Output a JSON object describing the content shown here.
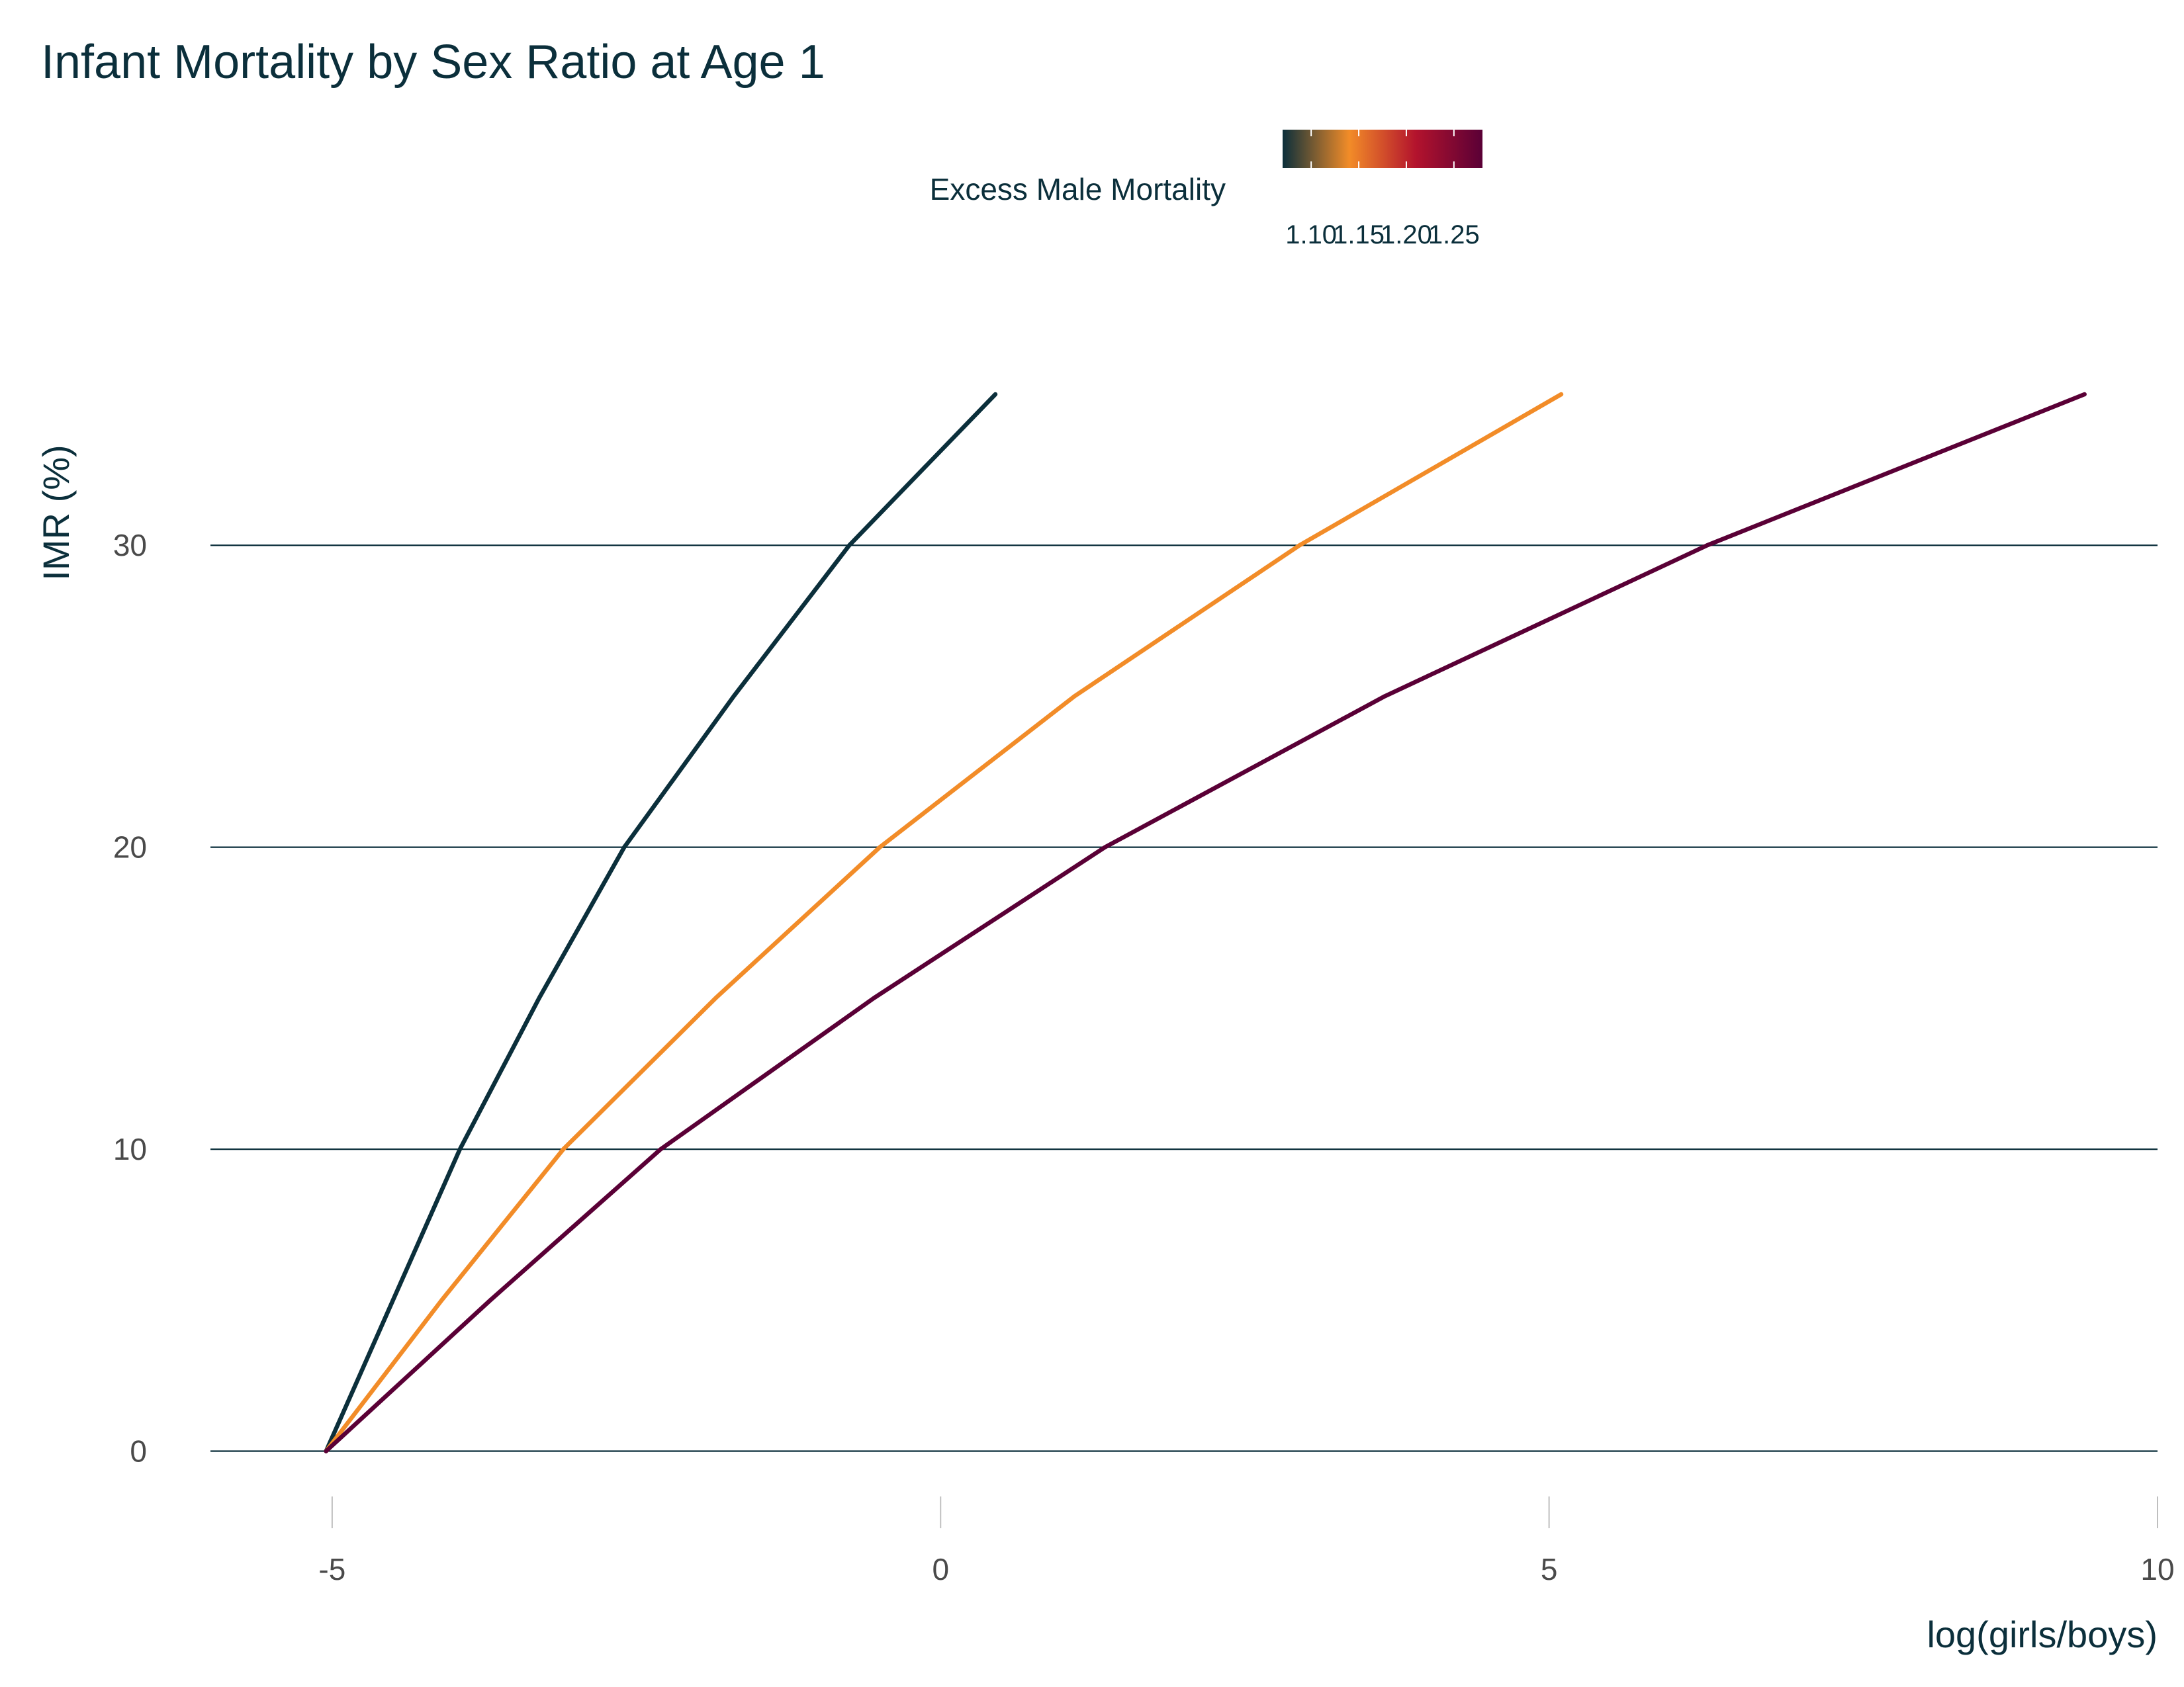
{
  "chart_data": {
    "type": "line",
    "title": "Infant Mortality by Sex Ratio at Age 1",
    "xlabel": "log(girls/boys)",
    "ylabel": "IMR (%)",
    "xlim": [
      -6,
      10
    ],
    "ylim": [
      -1.5,
      35
    ],
    "x_ticks": [
      -5,
      0,
      5,
      10
    ],
    "x_tick_labels": [
      "-5",
      "0",
      "5",
      "10"
    ],
    "y_ticks": [
      0,
      10,
      20,
      30
    ],
    "y_tick_labels": [
      "0",
      "10",
      "20",
      "30"
    ],
    "grid": "horizontal",
    "legend": {
      "title": "Excess Male Mortality",
      "placement": "top",
      "type": "colorbar",
      "range": [
        1.07,
        1.28
      ],
      "ticks": [
        1.1,
        1.15,
        1.2,
        1.25
      ],
      "tick_labels": [
        "1.10",
        "1.15",
        "1.20",
        "1.25"
      ],
      "stops": [
        "#0b2f3b",
        "#f28c28",
        "#b3132d",
        "#5a0036"
      ]
    },
    "series": [
      {
        "excess_male_mortality": 1.1,
        "color": "#0b2f3b",
        "points": [
          [
            -5.05,
            0
          ],
          [
            -4.5,
            5
          ],
          [
            -3.95,
            10
          ],
          [
            -3.3,
            15
          ],
          [
            -2.6,
            20
          ],
          [
            -1.7,
            25
          ],
          [
            -0.75,
            30
          ],
          [
            0.45,
            35
          ]
        ]
      },
      {
        "excess_male_mortality": 1.15,
        "color": "#f28c28",
        "points": [
          [
            -5.05,
            0
          ],
          [
            -4.1,
            5
          ],
          [
            -3.1,
            10
          ],
          [
            -1.85,
            15
          ],
          [
            -0.5,
            20
          ],
          [
            1.1,
            25
          ],
          [
            2.95,
            30
          ],
          [
            5.1,
            35
          ]
        ]
      },
      {
        "excess_male_mortality": 1.25,
        "color": "#5a0036",
        "points": [
          [
            -5.05,
            0
          ],
          [
            -3.7,
            5
          ],
          [
            -2.3,
            10
          ],
          [
            -0.55,
            15
          ],
          [
            1.35,
            20
          ],
          [
            3.65,
            25
          ],
          [
            6.3,
            30
          ],
          [
            9.4,
            35
          ]
        ]
      }
    ]
  }
}
